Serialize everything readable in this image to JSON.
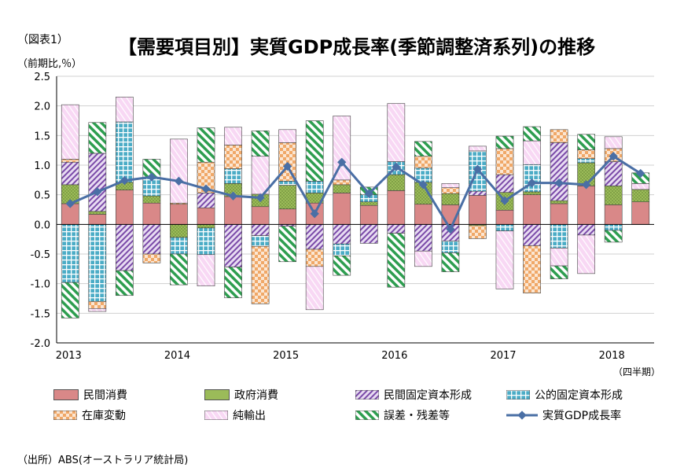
{
  "figure_label": "（図表1）",
  "title": "【需要項目別】実質GDP成長率(季節調整済系列)の推移",
  "unit_label": "（前期比,％）",
  "quarter_note": "（四半期）",
  "source": "（出所）ABS(オーストラリア統計局)",
  "colors": {
    "private_consumption": "#d98888",
    "govt_consumption": "#9bbb59",
    "private_investment": "#9b6fc0",
    "public_investment": "#4bacc6",
    "inventory": "#f4a460",
    "net_exports": "#f4c0f0",
    "statistical_discrepancy": "#3aa55a",
    "gdp_line": "#4a6fa5"
  },
  "chart_data": {
    "type": "bar",
    "stacked": true,
    "ylim": [
      -2.0,
      2.5
    ],
    "yticks": [
      "2.5",
      "2.0",
      "1.5",
      "1.0",
      "0.5",
      "0.0",
      "-0.5",
      "-1.0",
      "-1.5",
      "-2.0"
    ],
    "ytick_values": [
      2.5,
      2.0,
      1.5,
      1.0,
      0.5,
      0.0,
      -0.5,
      -1.0,
      -1.5,
      -2.0
    ],
    "x_year_labels": [
      {
        "label": "2013",
        "index": 0
      },
      {
        "label": "2014",
        "index": 4
      },
      {
        "label": "2015",
        "index": 8
      },
      {
        "label": "2016",
        "index": 12
      },
      {
        "label": "2017",
        "index": 16
      },
      {
        "label": "2018",
        "index": 20
      }
    ],
    "quarters": 22,
    "series": [
      {
        "key": "private_consumption",
        "name": "民間消費",
        "values": [
          0.35,
          0.17,
          0.58,
          0.36,
          0.34,
          0.28,
          0.47,
          0.3,
          0.26,
          0.36,
          0.53,
          0.32,
          0.57,
          0.34,
          0.33,
          0.49,
          0.24,
          0.5,
          0.35,
          0.65,
          0.33,
          0.38
        ]
      },
      {
        "key": "govt_consumption",
        "name": "政府消費",
        "values": [
          0.32,
          0.05,
          0.13,
          0.12,
          -0.22,
          -0.06,
          0.22,
          0.21,
          0.4,
          0.17,
          0.14,
          0.06,
          0.27,
          0.37,
          0.19,
          -0.02,
          0.3,
          0.05,
          0.05,
          0.39,
          0.32,
          0.21
        ]
      },
      {
        "key": "private_investment",
        "name": "民間固定資本形成",
        "values": [
          0.38,
          0.98,
          -0.78,
          -0.5,
          0.0,
          0.25,
          -0.72,
          -0.19,
          -0.03,
          -0.42,
          -0.33,
          -0.32,
          -0.15,
          -0.45,
          -0.28,
          0.07,
          0.3,
          -0.36,
          0.98,
          -0.18,
          0.41,
          0.0
        ]
      },
      {
        "key": "public_investment",
        "name": "公的固定資本形成",
        "values": [
          -0.98,
          -1.3,
          1.02,
          0.3,
          -0.28,
          -0.45,
          0.25,
          -0.18,
          0.07,
          0.2,
          -0.2,
          0.12,
          0.22,
          0.24,
          -0.2,
          0.68,
          -0.11,
          0.46,
          -0.4,
          0.07,
          -0.1,
          0.0
        ]
      },
      {
        "key": "inventory",
        "name": "在庫変動",
        "values": [
          0.05,
          -0.12,
          0.0,
          -0.15,
          0.02,
          0.52,
          0.4,
          -0.97,
          0.65,
          -0.29,
          0.08,
          0.0,
          0.0,
          0.2,
          0.1,
          -0.22,
          0.44,
          -0.8,
          0.22,
          0.15,
          0.22,
          0.0
        ]
      },
      {
        "key": "net_exports",
        "name": "純輸出",
        "values": [
          0.92,
          -0.05,
          0.42,
          0.0,
          1.08,
          -0.53,
          0.3,
          0.64,
          0.22,
          -0.73,
          1.08,
          0.0,
          0.98,
          -0.26,
          0.07,
          0.08,
          -0.98,
          0.4,
          -0.3,
          -0.65,
          0.2,
          0.1
        ]
      },
      {
        "key": "statistical_discrepancy",
        "name": "誤差・残差等",
        "values": [
          -0.6,
          0.52,
          -0.42,
          0.32,
          -0.52,
          0.58,
          -0.52,
          0.43,
          -0.6,
          1.02,
          -0.33,
          0.13,
          -0.91,
          0.25,
          -0.32,
          0.0,
          0.21,
          0.24,
          -0.22,
          0.26,
          -0.2,
          0.18
        ]
      }
    ],
    "line": {
      "key": "gdp_line",
      "name": "実質GDP成長率",
      "values": [
        0.35,
        0.55,
        0.74,
        0.8,
        0.73,
        0.6,
        0.48,
        0.45,
        0.98,
        0.18,
        1.05,
        0.52,
        0.97,
        0.67,
        -0.08,
        0.93,
        0.4,
        0.7,
        0.7,
        0.67,
        1.15,
        0.86
      ]
    }
  }
}
